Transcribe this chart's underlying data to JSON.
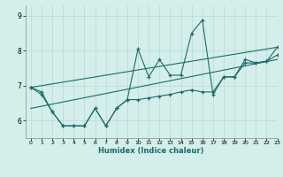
{
  "title": "",
  "xlabel": "Humidex (Indice chaleur)",
  "ylabel": "",
  "bg_color": "#d4eeeb",
  "line_color": "#1a6b6b",
  "grid_color": "#b8d8d4",
  "xlim": [
    -0.5,
    23
  ],
  "ylim": [
    5.5,
    9.3
  ],
  "xticks": [
    0,
    1,
    2,
    3,
    4,
    5,
    6,
    7,
    8,
    9,
    10,
    11,
    12,
    13,
    14,
    15,
    16,
    17,
    18,
    19,
    20,
    21,
    22,
    23
  ],
  "yticks": [
    6,
    7,
    8,
    9
  ],
  "series1_x": [
    0,
    1,
    2,
    3,
    4,
    5,
    6,
    7,
    8,
    9,
    10,
    11,
    12,
    13,
    14,
    15,
    16,
    17,
    18,
    19,
    20,
    21,
    22,
    23
  ],
  "series1_y": [
    6.95,
    6.82,
    6.25,
    5.85,
    5.85,
    5.85,
    6.35,
    5.85,
    6.35,
    6.6,
    8.05,
    7.25,
    7.75,
    7.3,
    7.3,
    8.5,
    8.88,
    6.75,
    7.25,
    7.25,
    7.75,
    7.65,
    7.7,
    8.1
  ],
  "series2_x": [
    0,
    1,
    2,
    3,
    4,
    5,
    6,
    7,
    8,
    9,
    10,
    11,
    12,
    13,
    14,
    15,
    16,
    17,
    18,
    19,
    20,
    21,
    22,
    23
  ],
  "series2_y": [
    6.95,
    6.75,
    6.25,
    5.85,
    5.85,
    5.85,
    6.35,
    5.85,
    6.35,
    6.6,
    6.6,
    6.65,
    6.7,
    6.75,
    6.82,
    6.88,
    6.82,
    6.82,
    7.25,
    7.25,
    7.65,
    7.65,
    7.7,
    7.88
  ],
  "trend1_x": [
    0,
    23
  ],
  "trend1_y": [
    6.95,
    8.1
  ],
  "trend2_x": [
    0,
    23
  ],
  "trend2_y": [
    6.35,
    7.75
  ]
}
